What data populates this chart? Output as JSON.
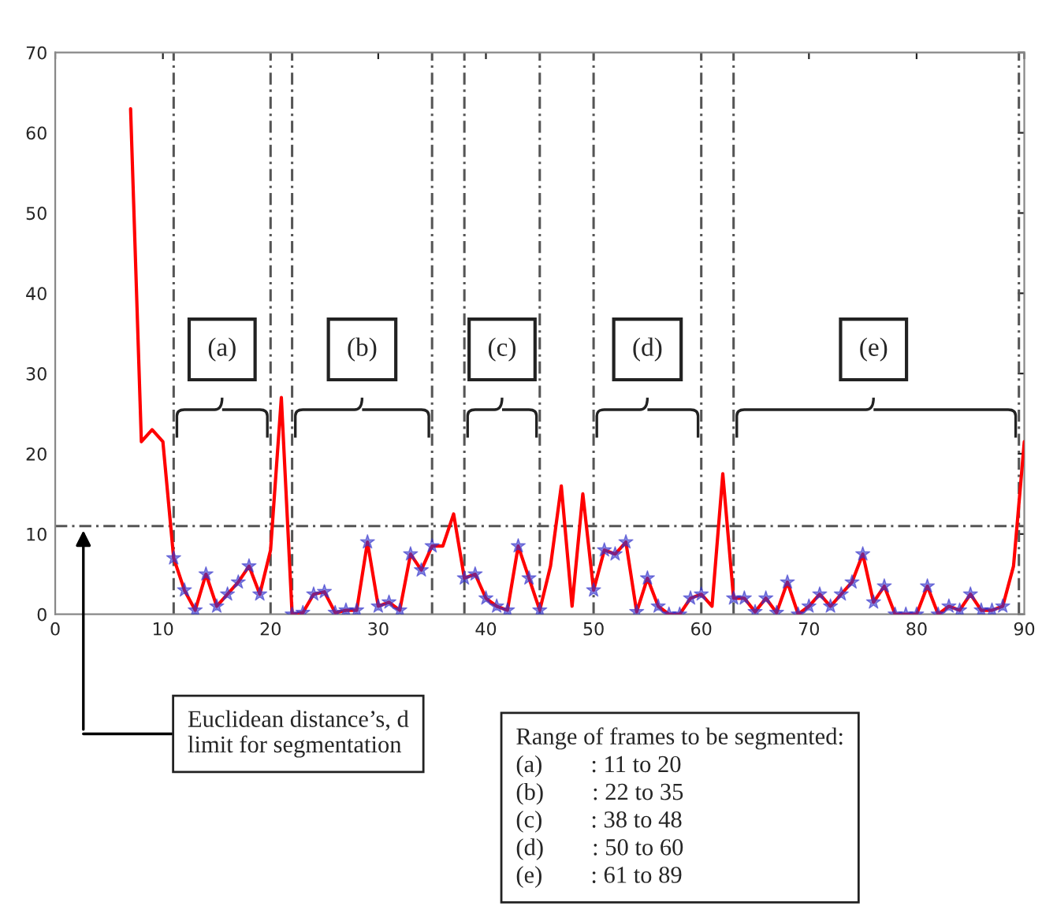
{
  "chart_data": {
    "type": "line",
    "xlim": [
      0,
      90
    ],
    "ylim": [
      0,
      70
    ],
    "xticks": [
      0,
      10,
      20,
      30,
      40,
      50,
      60,
      70,
      80,
      90
    ],
    "yticks": [
      0,
      10,
      20,
      30,
      40,
      50,
      60,
      70
    ],
    "grid": false,
    "legend": false,
    "series": [
      {
        "color": "#ff0000",
        "marker": "none",
        "line_style": "solid",
        "x": [
          7,
          8,
          9,
          10,
          11,
          12,
          13,
          14,
          15,
          16,
          17,
          18,
          19,
          20,
          21,
          22,
          23,
          24,
          25,
          26,
          27,
          28,
          29,
          30,
          31,
          32,
          33,
          34,
          35,
          36,
          37,
          38,
          39,
          40,
          41,
          42,
          43,
          44,
          45,
          46,
          47,
          48,
          49,
          50,
          51,
          52,
          53,
          54,
          55,
          56,
          57,
          58,
          59,
          60,
          61,
          62,
          63,
          64,
          65,
          66,
          67,
          68,
          69,
          70,
          71,
          72,
          73,
          74,
          75,
          76,
          77,
          78,
          79,
          80,
          81,
          82,
          83,
          84,
          85,
          86,
          87,
          88,
          89,
          90
        ],
        "values": [
          63,
          21.5,
          23,
          21.5,
          7,
          3,
          0.5,
          5,
          1,
          2.5,
          4,
          6,
          2.5,
          8,
          27,
          0,
          0.2,
          2.5,
          2.8,
          0.2,
          0.5,
          0.5,
          9,
          1,
          1.5,
          0.5,
          7.5,
          5.5,
          8.5,
          8.5,
          12.5,
          4.5,
          5,
          2,
          1,
          0.5,
          8.5,
          4.5,
          0.5,
          6,
          16,
          1,
          15,
          3,
          8,
          7.5,
          9,
          0.3,
          4.5,
          1,
          0,
          0,
          2,
          2.5,
          1,
          17.5,
          2,
          2,
          0.3,
          2,
          0.2,
          4,
          0,
          1,
          2.5,
          1,
          2.5,
          4,
          7.5,
          1.5,
          3.5,
          0,
          0,
          0,
          3.5,
          0,
          1,
          0.5,
          2.5,
          0.5,
          0.5,
          1,
          6,
          21.5
        ]
      },
      {
        "type": "scatter",
        "color": "#3333cc",
        "marker": "star",
        "x": [
          11,
          12,
          13,
          14,
          15,
          16,
          17,
          18,
          19,
          22,
          23,
          24,
          25,
          26,
          27,
          28,
          29,
          30,
          31,
          32,
          33,
          34,
          35,
          38,
          39,
          40,
          41,
          42,
          43,
          44,
          45,
          50,
          51,
          52,
          53,
          54,
          55,
          56,
          57,
          58,
          59,
          60,
          63,
          64,
          65,
          66,
          67,
          68,
          69,
          70,
          71,
          72,
          73,
          74,
          75,
          76,
          77,
          78,
          79,
          80,
          81,
          82,
          83,
          84,
          85,
          86,
          87,
          88
        ],
        "values": [
          7,
          3,
          0.5,
          5,
          1,
          2.5,
          4,
          6,
          2.5,
          0,
          0.2,
          2.5,
          2.8,
          0.2,
          0.5,
          0.5,
          9,
          1,
          1.5,
          0.5,
          7.5,
          5.5,
          8.5,
          4.5,
          5,
          2,
          1,
          0.5,
          8.5,
          4.5,
          0.5,
          3,
          8,
          7.5,
          9,
          0.3,
          4.5,
          1,
          0,
          0,
          2,
          2.5,
          2,
          2,
          0.3,
          2,
          0.2,
          4,
          0,
          1,
          2.5,
          1,
          2.5,
          4,
          7.5,
          1.5,
          3.5,
          0,
          0,
          0,
          3.5,
          0,
          1,
          0.5,
          2.5,
          0.5,
          0.5,
          1
        ]
      }
    ],
    "ref_lines": [
      {
        "axis": "y",
        "value": 11,
        "line_style": "dashed",
        "color": "#555555"
      },
      {
        "axis": "x",
        "value": 11,
        "line_style": "dashed",
        "color": "#555555"
      },
      {
        "axis": "x",
        "value": 20,
        "line_style": "dashed",
        "color": "#555555"
      },
      {
        "axis": "x",
        "value": 22,
        "line_style": "dashed",
        "color": "#555555"
      },
      {
        "axis": "x",
        "value": 35,
        "line_style": "dashed",
        "color": "#555555"
      },
      {
        "axis": "x",
        "value": 38,
        "line_style": "dashed",
        "color": "#555555"
      },
      {
        "axis": "x",
        "value": 45,
        "line_style": "dashed",
        "color": "#555555"
      },
      {
        "axis": "x",
        "value": 50,
        "line_style": "dashed",
        "color": "#555555"
      },
      {
        "axis": "x",
        "value": 60,
        "line_style": "dashed",
        "color": "#555555"
      },
      {
        "axis": "x",
        "value": 63,
        "line_style": "dashed",
        "color": "#555555"
      },
      {
        "axis": "x",
        "value": 89.5,
        "line_style": "dashed",
        "color": "#555555"
      }
    ],
    "annotations": [
      {
        "text": "(a)",
        "x": 15.5,
        "y": 33
      },
      {
        "text": "(b)",
        "x": 28.5,
        "y": 33
      },
      {
        "text": "(c)",
        "x": 41.5,
        "y": 33
      },
      {
        "text": "(d)",
        "x": 55,
        "y": 33
      },
      {
        "text": "(e)",
        "x": 76,
        "y": 33
      },
      "Euclidean distance’s, d\nlimit for segmentation",
      "Range of frames to be segmented:\n(a)        : 11 to 20\n(b)        : 22 to 35\n(c)        : 38 to 48\n(d)        : 50 to 60\n(e)        : 61 to 89"
    ]
  }
}
